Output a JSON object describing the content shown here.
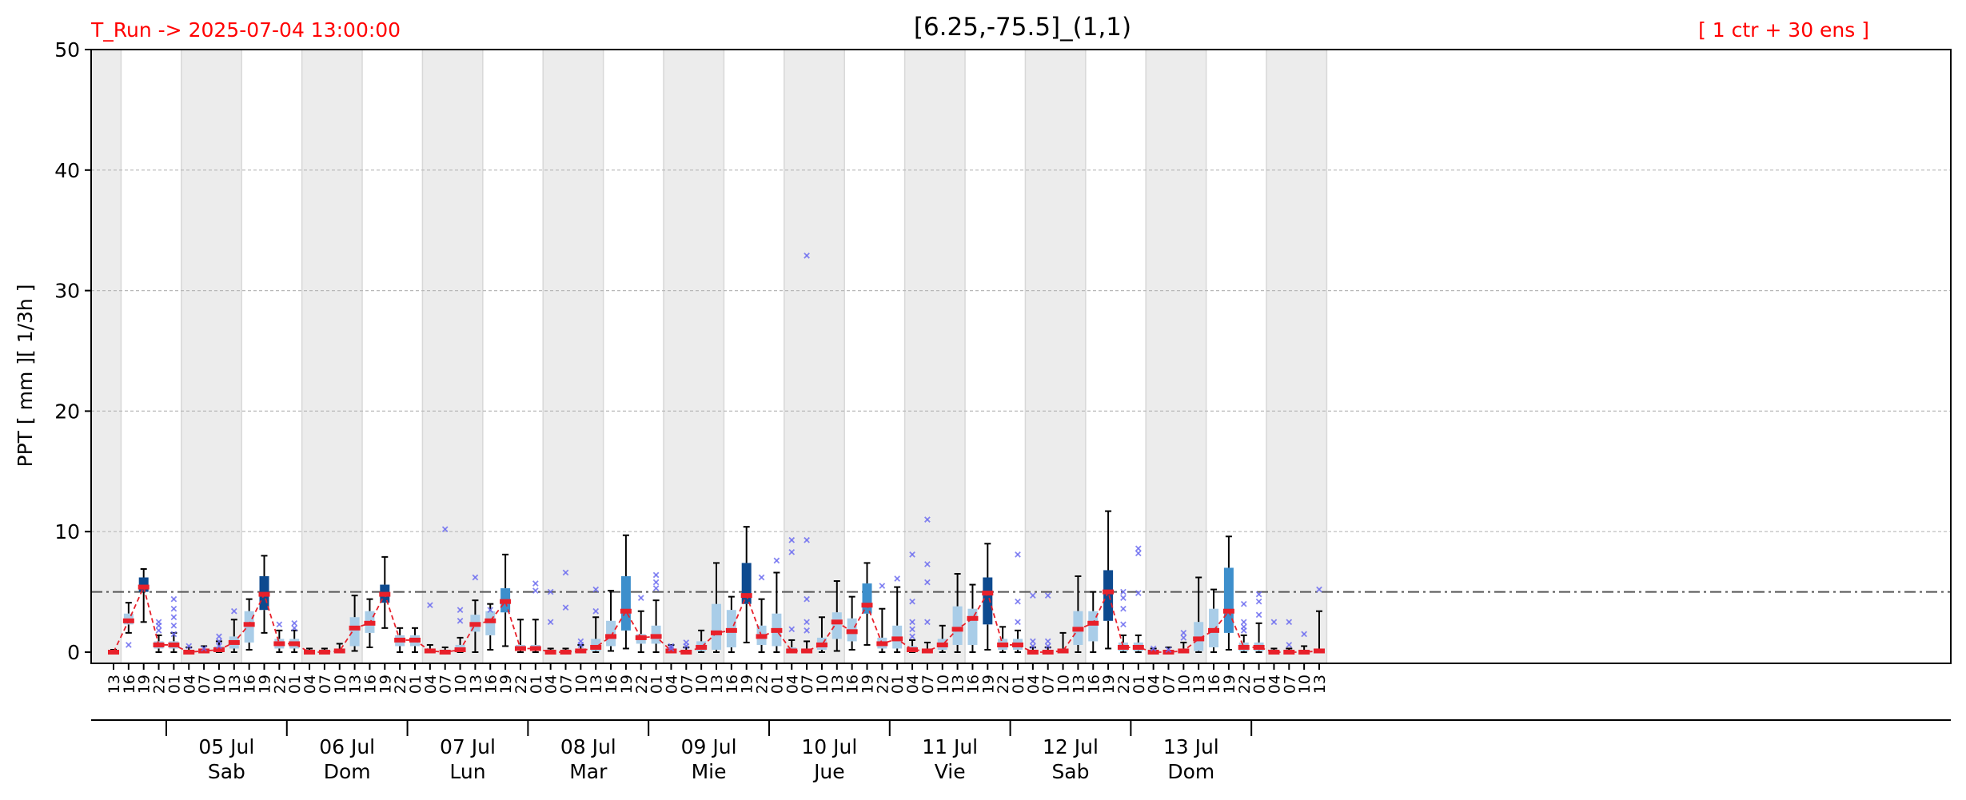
{
  "header": {
    "run_label": "T_Run -> 2025-07-04  13:00:00",
    "title": "[6.25,-75.5]_(1,1)",
    "ensemble_label": "[ 1 ctr + 30 ens ]"
  },
  "colors": {
    "header_red": "#ff0000",
    "median_line": "#e8202a",
    "night_band": "#ececec",
    "threshold_line": "#555555",
    "outlier": "#6a6af0",
    "box_light": "#a9cde8",
    "box_mid": "#3d8fcc",
    "box_dark": "#0d4a8f"
  },
  "chart_data": {
    "type": "box",
    "ylabel": "PPT  [ mm ][ 1/3h ]",
    "ylim": [
      0,
      50
    ],
    "yticks": [
      0,
      10,
      20,
      30,
      40,
      50
    ],
    "grid": true,
    "threshold": 5,
    "x_hours": [
      "13",
      "16",
      "19",
      "22",
      "01",
      "04",
      "07",
      "10",
      "13",
      "16",
      "19",
      "22",
      "01",
      "04",
      "07",
      "10",
      "13",
      "16",
      "19",
      "22",
      "01",
      "04",
      "07",
      "10",
      "13",
      "16",
      "19",
      "22",
      "01",
      "04",
      "07",
      "10",
      "13",
      "16",
      "19",
      "22",
      "01",
      "04",
      "07",
      "10",
      "13",
      "16",
      "19",
      "22",
      "01",
      "04",
      "07",
      "10",
      "13",
      "16",
      "19",
      "22",
      "01",
      "04",
      "07",
      "10",
      "13",
      "16",
      "19",
      "22",
      "01",
      "04",
      "07",
      "10",
      "13",
      "16",
      "19",
      "22",
      "01",
      "04",
      "07",
      "10",
      "13",
      "16",
      "19",
      "22",
      "01",
      "04",
      "07",
      "10",
      "13"
    ],
    "days": [
      {
        "date": "05 Jul",
        "weekday": "Sab"
      },
      {
        "date": "06 Jul",
        "weekday": "Dom"
      },
      {
        "date": "07 Jul",
        "weekday": "Lun"
      },
      {
        "date": "08 Jul",
        "weekday": "Mar"
      },
      {
        "date": "09 Jul",
        "weekday": "Mie"
      },
      {
        "date": "10 Jul",
        "weekday": "Jue"
      },
      {
        "date": "11 Jul",
        "weekday": "Vie"
      },
      {
        "date": "12 Jul",
        "weekday": "Sab"
      },
      {
        "date": "13 Jul",
        "weekday": "Dom"
      }
    ],
    "median": [
      0.0,
      2.6,
      5.4,
      0.6,
      0.6,
      0.0,
      0.1,
      0.2,
      0.8,
      2.3,
      4.8,
      0.7,
      0.7,
      0.0,
      0.0,
      0.1,
      2.0,
      2.4,
      4.8,
      1.0,
      1.0,
      0.1,
      0.0,
      0.2,
      2.3,
      2.6,
      4.2,
      0.3,
      0.3,
      0.0,
      0.0,
      0.1,
      0.4,
      1.3,
      3.4,
      1.2,
      1.3,
      0.1,
      0.0,
      0.4,
      1.6,
      1.8,
      4.7,
      1.3,
      1.8,
      0.1,
      0.1,
      0.6,
      2.5,
      1.7,
      3.9,
      0.7,
      1.1,
      0.2,
      0.1,
      0.6,
      1.9,
      2.8,
      4.9,
      0.6,
      0.6,
      0.0,
      0.0,
      0.1,
      1.9,
      2.4,
      5.0,
      0.4,
      0.4,
      0.0,
      0.0,
      0.1,
      1.1,
      1.8,
      3.4,
      0.4,
      0.4,
      0.0,
      0.0,
      0.0,
      0.1
    ],
    "q1": [
      0.0,
      2.3,
      5.0,
      0.3,
      0.3,
      0.0,
      0.0,
      0.0,
      0.3,
      0.8,
      3.5,
      0.3,
      0.3,
      0.0,
      0.0,
      0.0,
      0.5,
      1.6,
      4.1,
      0.5,
      0.5,
      0.0,
      0.0,
      0.0,
      1.7,
      1.4,
      3.3,
      0.1,
      0.1,
      0.0,
      0.0,
      0.0,
      0.1,
      0.5,
      1.8,
      0.7,
      0.7,
      0.0,
      0.0,
      0.1,
      0.2,
      0.4,
      4.0,
      0.6,
      0.5,
      0.0,
      0.0,
      0.2,
      1.1,
      0.9,
      3.2,
      0.3,
      0.3,
      0.0,
      0.0,
      0.2,
      0.6,
      0.6,
      2.3,
      0.2,
      0.2,
      0.0,
      0.0,
      0.0,
      0.6,
      0.9,
      2.6,
      0.1,
      0.1,
      0.0,
      0.0,
      0.0,
      0.1,
      0.4,
      1.6,
      0.1,
      0.1,
      0.0,
      0.0,
      0.0,
      0.0
    ],
    "q3": [
      0.1,
      3.2,
      6.2,
      0.9,
      0.9,
      0.2,
      0.3,
      0.5,
      1.3,
      3.4,
      6.3,
      1.1,
      1.1,
      0.1,
      0.1,
      0.3,
      2.9,
      3.4,
      5.6,
      1.4,
      1.4,
      0.3,
      0.2,
      0.6,
      3.1,
      3.4,
      5.3,
      0.6,
      0.6,
      0.1,
      0.1,
      0.3,
      1.1,
      2.6,
      6.3,
      1.5,
      2.2,
      0.3,
      0.2,
      0.9,
      4.0,
      3.5,
      7.4,
      2.2,
      3.2,
      0.4,
      0.3,
      1.2,
      3.3,
      2.8,
      5.7,
      1.2,
      2.2,
      0.5,
      0.3,
      1.1,
      3.8,
      3.6,
      6.2,
      1.1,
      1.1,
      0.2,
      0.2,
      0.3,
      3.4,
      3.4,
      6.8,
      0.8,
      0.8,
      0.1,
      0.1,
      0.3,
      2.5,
      3.6,
      7.0,
      0.8,
      0.8,
      0.1,
      0.1,
      0.1,
      0.3
    ],
    "wmin": [
      0.0,
      1.6,
      2.5,
      0.0,
      0.0,
      0.0,
      0.0,
      0.0,
      0.0,
      0.2,
      1.6,
      0.0,
      0.0,
      0.0,
      0.0,
      0.0,
      0.1,
      0.4,
      2.0,
      0.0,
      0.0,
      0.0,
      0.0,
      0.0,
      0.0,
      0.2,
      0.5,
      0.0,
      0.0,
      0.0,
      0.0,
      0.0,
      0.0,
      0.1,
      0.3,
      0.0,
      0.0,
      0.0,
      0.0,
      0.0,
      0.0,
      0.0,
      0.8,
      0.0,
      0.0,
      0.0,
      0.0,
      0.0,
      0.1,
      0.2,
      0.6,
      0.0,
      0.0,
      0.0,
      0.0,
      0.0,
      0.0,
      0.0,
      0.2,
      0.0,
      0.0,
      0.0,
      0.0,
      0.0,
      0.0,
      0.0,
      0.3,
      0.0,
      0.0,
      0.0,
      0.0,
      0.0,
      0.0,
      0.0,
      0.2,
      0.0,
      0.0,
      0.0,
      0.0,
      0.0,
      0.0
    ],
    "wmax": [
      0.2,
      4.1,
      6.9,
      1.4,
      1.6,
      0.4,
      0.5,
      0.9,
      2.7,
      4.4,
      8.0,
      1.8,
      1.8,
      0.3,
      0.3,
      0.7,
      4.7,
      4.4,
      7.9,
      2.0,
      2.0,
      0.6,
      0.4,
      1.2,
      4.3,
      4.0,
      8.1,
      2.7,
      2.7,
      0.3,
      0.3,
      0.6,
      2.9,
      5.1,
      9.7,
      3.4,
      4.3,
      0.6,
      0.4,
      1.8,
      7.4,
      4.6,
      10.4,
      4.4,
      6.6,
      1.0,
      0.9,
      2.9,
      5.9,
      4.6,
      7.4,
      3.6,
      5.4,
      1.0,
      0.8,
      2.2,
      6.5,
      5.6,
      9.0,
      2.1,
      1.8,
      0.4,
      0.4,
      1.6,
      6.3,
      5.0,
      11.7,
      1.4,
      1.4,
      0.3,
      0.4,
      0.8,
      6.2,
      5.2,
      9.6,
      1.4,
      2.4,
      0.3,
      0.3,
      0.5,
      3.4
    ],
    "outliers": [
      [],
      [
        0.6
      ],
      [],
      [
        1.8,
        2.2,
        2.5
      ],
      [
        1.5,
        2.2,
        2.9,
        3.6,
        4.4
      ],
      [
        0.5
      ],
      [
        0.3
      ],
      [
        0.5,
        0.9,
        1.3
      ],
      [
        3.4
      ],
      [],
      [],
      [
        2.3
      ],
      [
        2.0,
        2.4
      ],
      [],
      [],
      [],
      [],
      [],
      [],
      [],
      [],
      [
        3.9
      ],
      [
        10.2
      ],
      [
        2.6,
        3.5
      ],
      [
        6.2
      ],
      [
        3.5
      ],
      [],
      [],
      [
        5.1,
        5.7
      ],
      [
        2.5,
        5.0
      ],
      [
        3.7,
        6.6
      ],
      [
        0.6,
        0.9
      ],
      [
        3.4,
        5.2
      ],
      [],
      [],
      [
        4.5
      ],
      [
        5.3,
        5.8,
        6.4
      ],
      [
        0.3,
        0.5
      ],
      [
        0.5,
        0.8
      ],
      [],
      [],
      [],
      [],
      [
        6.2
      ],
      [
        7.6
      ],
      [
        1.9,
        8.3,
        9.3
      ],
      [
        1.8,
        2.5,
        4.4,
        9.3,
        32.9
      ],
      [],
      [],
      [],
      [],
      [
        5.5
      ],
      [
        6.1
      ],
      [
        1.3,
        1.9,
        2.5,
        4.2,
        8.1
      ],
      [
        2.5,
        5.8,
        7.3,
        11.0
      ],
      [],
      [],
      [],
      [],
      [],
      [
        2.5,
        4.2,
        8.1
      ],
      [
        0.5,
        0.9,
        4.7
      ],
      [
        0.5,
        0.9,
        4.7
      ],
      [],
      [],
      [],
      [],
      [
        2.3,
        3.6,
        4.5,
        5.0
      ],
      [
        4.9,
        8.2,
        8.6
      ],
      [
        0.3
      ],
      [
        0.2
      ],
      [
        1.2,
        1.6
      ],
      [],
      [],
      [],
      [
        1.8,
        2.1,
        2.5,
        4.0
      ],
      [
        3.1,
        4.2,
        4.8
      ],
      [
        2.5
      ],
      [
        0.6,
        2.5
      ],
      [
        1.5
      ],
      [
        5.2
      ]
    ]
  }
}
